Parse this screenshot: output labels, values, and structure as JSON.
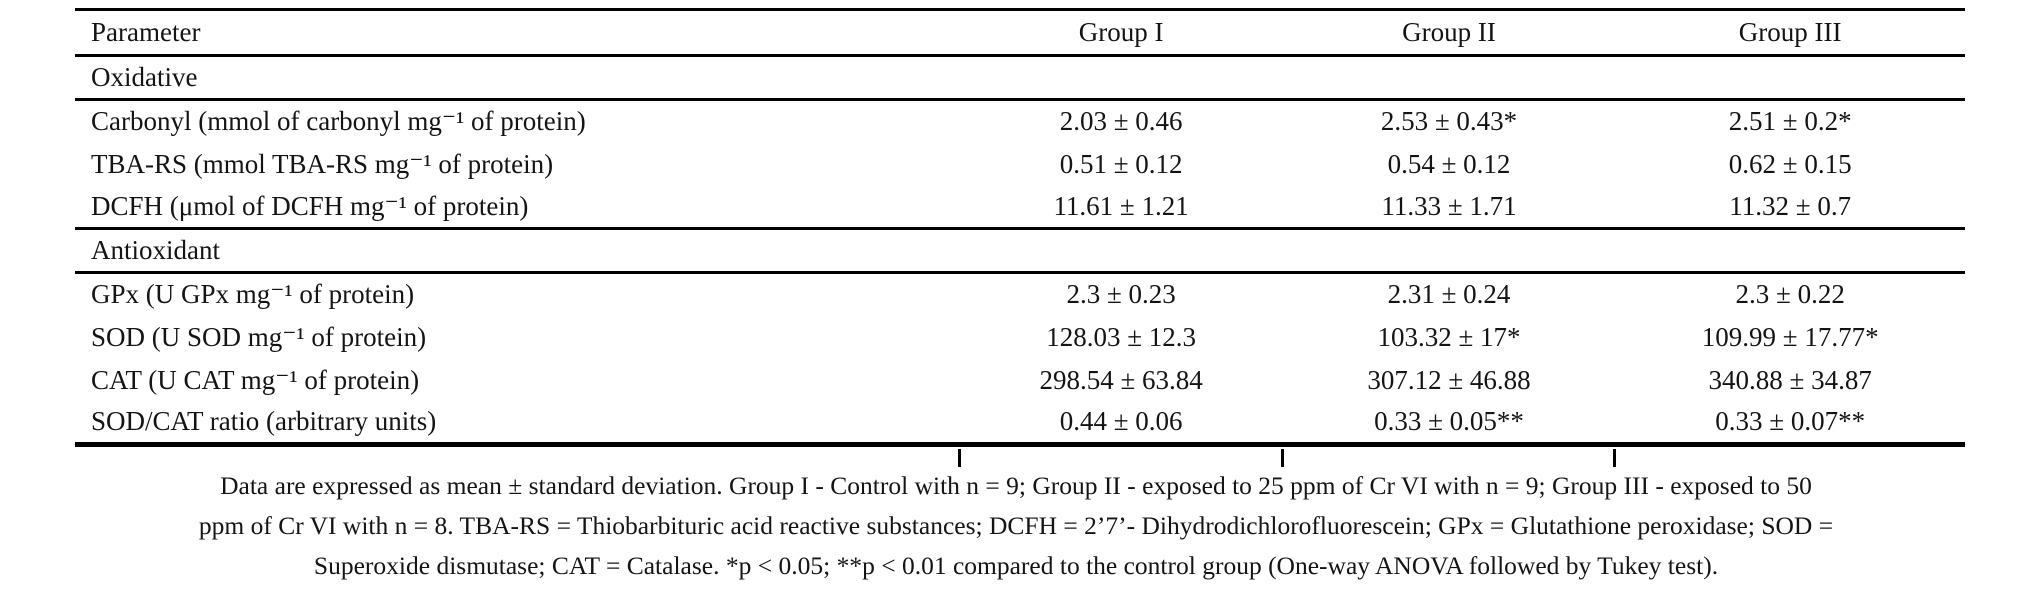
{
  "table": {
    "headers": [
      "Parameter",
      "Group I",
      "Group II",
      "Group III"
    ],
    "sections": [
      {
        "title": "Oxidative",
        "rows": [
          {
            "label": "Carbonyl (mmol of carbonyl mg⁻¹ of protein)",
            "values": [
              "2.03 ± 0.46",
              "2.53 ± 0.43*",
              "2.51 ± 0.2*"
            ]
          },
          {
            "label": "TBA-RS (mmol TBA-RS mg⁻¹ of protein)",
            "values": [
              "0.51 ± 0.12",
              "0.54 ± 0.12",
              "0.62 ± 0.15"
            ]
          },
          {
            "label": "DCFH (μmol of DCFH mg⁻¹ of protein)",
            "values": [
              "11.61 ± 1.21",
              "11.33 ± 1.71",
              "11.32 ± 0.7"
            ]
          }
        ]
      },
      {
        "title": "Antioxidant",
        "rows": [
          {
            "label": "GPx (U GPx mg⁻¹ of protein)",
            "values": [
              "2.3 ± 0.23",
              "2.31 ± 0.24",
              "2.3 ± 0.22"
            ]
          },
          {
            "label": "SOD (U SOD mg⁻¹ of protein)",
            "values": [
              "128.03 ± 12.3",
              "103.32 ± 17*",
              "109.99 ± 17.77*"
            ]
          },
          {
            "label": "CAT (U CAT mg⁻¹ of protein)",
            "values": [
              "298.54 ± 63.84",
              "307.12 ± 46.88",
              "340.88 ± 34.87"
            ]
          },
          {
            "label": "SOD/CAT ratio (arbitrary units)",
            "values": [
              "0.44 ± 0.06",
              "0.33 ± 0.05**",
              "0.33 ± 0.07**"
            ]
          }
        ]
      }
    ]
  },
  "footnote": {
    "lines": [
      "Data are expressed as mean ± standard deviation. Group I - Control with n = 9; Group II - exposed to 25 ppm of Cr VI with n = 9; Group III - exposed to 50",
      "ppm of Cr VI with n = 8. TBA-RS = Thiobarbituric acid reactive substances; DCFH = 2’7’- Dihydrodichlorofluorescein; GPx = Glutathione peroxidase; SOD =",
      "Superoxide dismutase; CAT = Catalase. *p < 0.05; **p < 0.01 compared to the control group (One-way ANOVA followed by Tukey test)."
    ]
  },
  "colors": {
    "text": "#141414",
    "background": "#ffffff",
    "rule": "#000000"
  }
}
